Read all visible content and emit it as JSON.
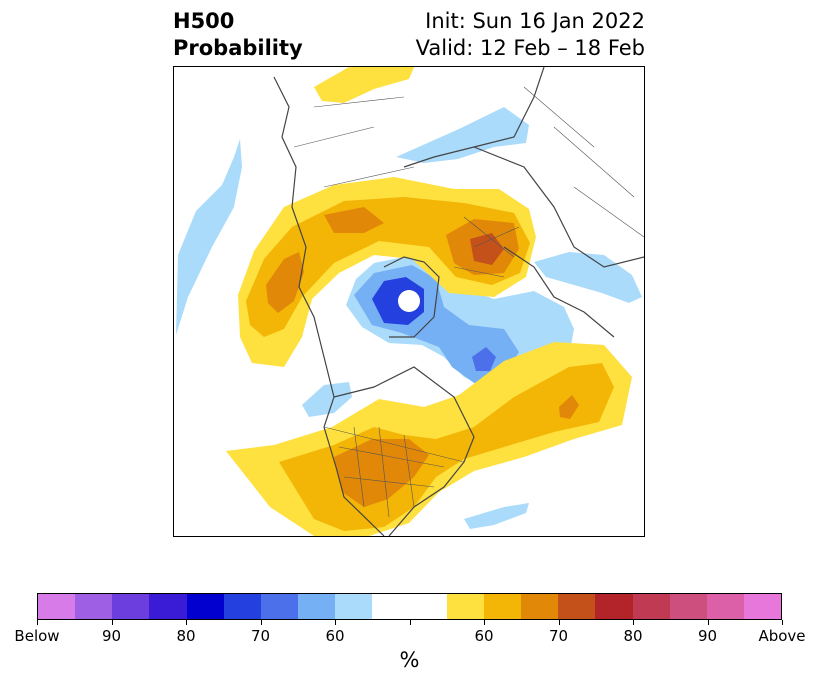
{
  "title": {
    "left_line1": "H500",
    "left_line2": "Probability",
    "right_line1": "Init: Sun 16 Jan 2022",
    "right_line2": "Valid: 12 Feb – 18 Feb"
  },
  "colorbar": {
    "unit": "%",
    "colors": [
      "#d77be8",
      "#9f5fe4",
      "#6d3ede",
      "#3a1cd6",
      "#0100cf",
      "#2440de",
      "#4c70e9",
      "#76b0f4",
      "#aadbfb",
      "#ffffff",
      "#ffffff",
      "#fee03e",
      "#f3b506",
      "#e28808",
      "#c4501a",
      "#b2242a",
      "#c13a53",
      "#cd4f7e",
      "#db60a8",
      "#e877dc"
    ],
    "tick_labels": [
      "Below",
      "90",
      "80",
      "70",
      "60",
      "",
      "60",
      "70",
      "80",
      "90",
      "Above"
    ]
  },
  "map": {
    "type": "polar-stereographic probability map",
    "legend_colors": {
      "below_60": "#aadbfb",
      "below_70": "#76b0f4",
      "below_80": "#2440de",
      "above_60": "#fee03e",
      "above_70": "#f3b506",
      "above_80": "#e28808"
    }
  }
}
